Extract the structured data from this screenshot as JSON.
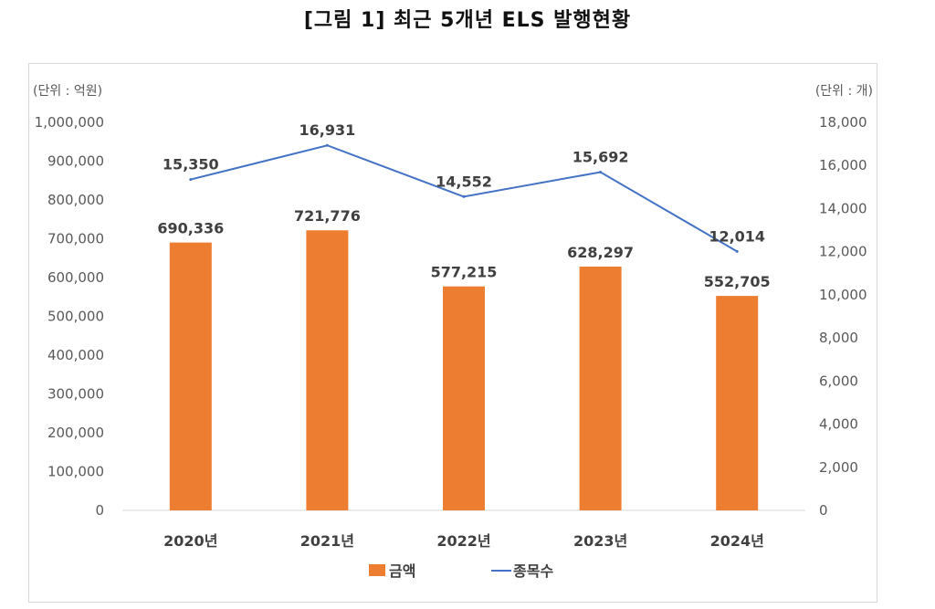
{
  "title": "[그림 1] 최근 5개년 ELS 발행현황",
  "chart_data": {
    "type": "bar",
    "categories": [
      "2020년",
      "2021년",
      "2022년",
      "2023년",
      "2024년"
    ],
    "y_unit_left": "(단위 : 억원)",
    "y_unit_right": "(단위 : 개)",
    "ylim_left": [
      0,
      1000000
    ],
    "ylim_right": [
      0,
      18000
    ],
    "yticks_left": [
      "0",
      "100,000",
      "200,000",
      "300,000",
      "400,000",
      "500,000",
      "600,000",
      "700,000",
      "800,000",
      "900,000",
      "1,000,000"
    ],
    "yticks_right": [
      "0",
      "2,000",
      "4,000",
      "6,000",
      "8,000",
      "10,000",
      "12,000",
      "14,000",
      "16,000",
      "18,000"
    ],
    "grid": false,
    "legend_position": "bottom",
    "series": [
      {
        "name": "금액",
        "type": "bar",
        "axis": "left",
        "color": "#ED7D31",
        "values": [
          690336,
          721776,
          577215,
          628297,
          552705
        ],
        "labels": [
          "690,336",
          "721,776",
          "577,215",
          "628,297",
          "552,705"
        ]
      },
      {
        "name": "종목수",
        "type": "line",
        "axis": "right",
        "color": "#4472C4",
        "values": [
          15350,
          16931,
          14552,
          15692,
          12014
        ],
        "labels": [
          "15,350",
          "16,931",
          "14,552",
          "15,692",
          "12,014"
        ]
      }
    ]
  }
}
